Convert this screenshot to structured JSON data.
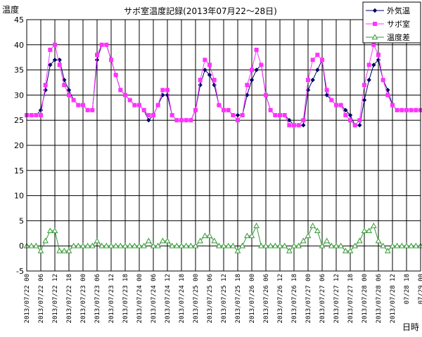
{
  "chart_data": {
    "type": "line",
    "title": "サボ室温度記録(2013年07月22～28日)",
    "ylabel": "温度",
    "xlabel": "日時",
    "ylim": [
      -5,
      45
    ],
    "yticks": [
      -5,
      0,
      5,
      10,
      15,
      20,
      25,
      30,
      35,
      40,
      45
    ],
    "grid": true,
    "legend_position": "top-right",
    "x_ticks": [
      "2013/07/22 00",
      "2013/07/22 06",
      "2013/07/22 12",
      "2013/07/22 18",
      "2013/07/23 00",
      "2013/07/23 06",
      "2013/07/23 12",
      "2013/07/23 18",
      "2013/07/24 00",
      "2013/07/24 06",
      "2013/07/24 12",
      "2013/07/24 18",
      "2013/07/25 00",
      "2013/07/25 06",
      "2013/07/25 12",
      "2013/07/25 18",
      "2013/07/26 00",
      "2013/07/26 06",
      "2013/07/26 12",
      "2013/07/26 18",
      "2013/07/27 00",
      "2013/07/27 06",
      "2013/07/27 12",
      "2013/07/27 18",
      "2013/07/28 00",
      "2013/07/28 06",
      "2013/07/28 12",
      "07/28 18",
      "07/29 00"
    ],
    "hours": [
      0,
      2,
      4,
      6,
      8,
      10,
      12,
      14,
      16,
      18,
      20,
      22,
      24,
      26,
      28,
      30,
      32,
      34,
      36,
      38,
      40,
      42,
      44,
      46,
      48,
      50,
      52,
      54,
      56,
      58,
      60,
      62,
      64,
      66,
      68,
      70,
      72,
      74,
      76,
      78,
      80,
      82,
      84,
      86,
      88,
      90,
      92,
      94,
      96,
      98,
      100,
      102,
      104,
      106,
      108,
      110,
      112,
      114,
      116,
      118,
      120,
      122,
      124,
      126,
      128,
      130,
      132,
      134,
      136,
      138,
      140,
      142,
      144,
      146,
      148,
      150,
      152,
      154,
      156,
      158,
      160,
      162,
      164,
      166,
      168
    ],
    "series": [
      {
        "name": "外気温",
        "color": "#000066",
        "marker": "diamond",
        "values": [
          26,
          26,
          26,
          27,
          31,
          36,
          37,
          37,
          33,
          31,
          29,
          28,
          28,
          27,
          27,
          37,
          40,
          40,
          37,
          34,
          31,
          30,
          29,
          28,
          28,
          27,
          25,
          26,
          28,
          30,
          30,
          26,
          25,
          25,
          25,
          25,
          27,
          32,
          35,
          34,
          32,
          28,
          27,
          27,
          26,
          26,
          26,
          30,
          33,
          35,
          36,
          30,
          27,
          26,
          26,
          26,
          25,
          24,
          24,
          24,
          31,
          33,
          35,
          37,
          30,
          29,
          28,
          28,
          27,
          26,
          24,
          24,
          29,
          33,
          36,
          37,
          33,
          31,
          28,
          27,
          27,
          27,
          27,
          27,
          27
        ]
      },
      {
        "name": "サボ室",
        "color": "#ff33ff",
        "marker": "square",
        "values": [
          26,
          26,
          26,
          26,
          32,
          39,
          40,
          36,
          32,
          30,
          29,
          28,
          28,
          27,
          27,
          38,
          40,
          40,
          37,
          34,
          31,
          30,
          29,
          28,
          28,
          27,
          26,
          26,
          28,
          31,
          31,
          26,
          25,
          25,
          25,
          25,
          27,
          33,
          37,
          36,
          33,
          28,
          27,
          27,
          26,
          25,
          26,
          32,
          35,
          39,
          36,
          30,
          27,
          26,
          26,
          26,
          24,
          24,
          24,
          25,
          33,
          37,
          38,
          37,
          31,
          29,
          28,
          28,
          26,
          25,
          24,
          25,
          32,
          36,
          40,
          38,
          33,
          30,
          28,
          27,
          27,
          27,
          27,
          27,
          27
        ]
      },
      {
        "name": "温度差",
        "color": "#339933",
        "marker": "triangle",
        "values": [
          0,
          0,
          0,
          -1,
          1,
          3,
          3,
          -1,
          -1,
          -1,
          0,
          0,
          0,
          0,
          0,
          1,
          0,
          0,
          0,
          0,
          0,
          0,
          0,
          0,
          0,
          0,
          1,
          0,
          0,
          1,
          1,
          0,
          0,
          0,
          0,
          0,
          0,
          1,
          2,
          2,
          1,
          0,
          0,
          0,
          0,
          -1,
          0,
          2,
          2,
          4,
          0,
          0,
          0,
          0,
          0,
          0,
          -1,
          0,
          0,
          1,
          2,
          4,
          3,
          0,
          1,
          0,
          0,
          0,
          -1,
          -1,
          0,
          1,
          3,
          3,
          4,
          1,
          0,
          -1,
          0,
          0,
          0,
          0,
          0,
          0,
          0
        ]
      }
    ]
  }
}
